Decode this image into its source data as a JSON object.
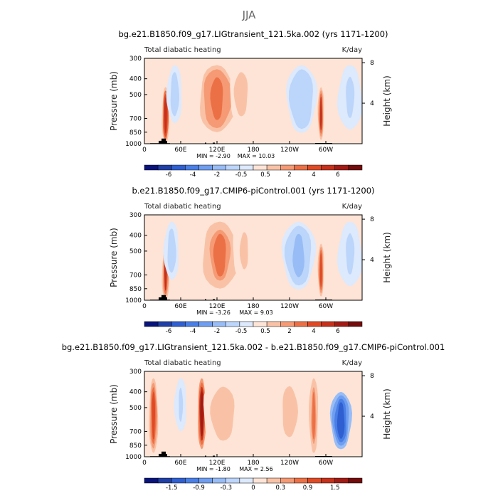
{
  "figure_title": "JJA",
  "chart_data": [
    {
      "type": "heatmap",
      "title": "bg.e21.B1850.f09_g17.LIGtransient_121.5ka.002 (yrs 1171-1200)",
      "subtitle_left": "Total diabatic heating",
      "units": "K/day",
      "ylabel_left": "Pressure (mb)",
      "ylabel_right": "Height (km)",
      "x_ticks": [
        "0",
        "60E",
        "120E",
        "180",
        "120W",
        "60W"
      ],
      "y_ticks_left": [
        "300",
        "400",
        "500",
        "700",
        "850",
        "1000"
      ],
      "y_ticks_right": [
        "8",
        "4"
      ],
      "xlim": [
        0,
        360
      ],
      "ylim": [
        1000,
        300
      ],
      "min_label": "MIN = -2.90",
      "max_label": "MAX = 10.03",
      "colorbar_labels": [
        "-6",
        "-4",
        "-2",
        "-0.5",
        "0.5",
        "2",
        "4",
        "6"
      ],
      "colorbar_colors": [
        "#08147a",
        "#1f3fa6",
        "#2f5fd0",
        "#4a7fe6",
        "#6f9ef0",
        "#97bcf6",
        "#bcd5fa",
        "#dde9fc",
        "#fde4d6",
        "#f9c2a6",
        "#f59a74",
        "#ec7046",
        "#df4a25",
        "#c5311b",
        "#a11b14",
        "#730c0c"
      ],
      "features": [
        {
          "lon": 35,
          "width": 12,
          "value": 4.5,
          "top": 450,
          "bottom": 1000
        },
        {
          "lon": 120,
          "width": 60,
          "value": 3.0,
          "top": 330,
          "bottom": 850
        },
        {
          "lon": 160,
          "width": 40,
          "value": 1.2,
          "top": 330,
          "bottom": 750
        },
        {
          "lon": 260,
          "width": 50,
          "value": -1.6,
          "top": 330,
          "bottom": 860
        },
        {
          "lon": 292,
          "width": 10,
          "value": 4.0,
          "top": 450,
          "bottom": 950
        },
        {
          "lon": 50,
          "width": 25,
          "value": -1.2,
          "top": 330,
          "bottom": 750
        },
        {
          "lon": 340,
          "width": 40,
          "value": -0.9,
          "top": 330,
          "bottom": 820
        }
      ]
    },
    {
      "type": "heatmap",
      "title": "b.e21.B1850.f09_g17.CMIP6-piControl.001 (yrs 1171-1200)",
      "subtitle_left": "Total diabatic heating",
      "units": "K/day",
      "ylabel_left": "Pressure (mb)",
      "ylabel_right": "Height (km)",
      "x_ticks": [
        "0",
        "60E",
        "120E",
        "180",
        "120W",
        "60W"
      ],
      "y_ticks_left": [
        "300",
        "400",
        "500",
        "700",
        "850",
        "1000"
      ],
      "y_ticks_right": [
        "8",
        "4"
      ],
      "xlim": [
        0,
        360
      ],
      "ylim": [
        1000,
        300
      ],
      "min_label": "MIN = -3.26",
      "max_label": "MAX = 9.03",
      "colorbar_labels": [
        "-6",
        "-4",
        "-2",
        "-0.5",
        "0.5",
        "2",
        "4",
        "6"
      ],
      "colorbar_colors": [
        "#08147a",
        "#1f3fa6",
        "#2f5fd0",
        "#4a7fe6",
        "#6f9ef0",
        "#97bcf6",
        "#bcd5fa",
        "#dde9fc",
        "#fde4d6",
        "#f9c2a6",
        "#f59a74",
        "#ec7046",
        "#df4a25",
        "#c5311b",
        "#a11b14",
        "#730c0c"
      ],
      "features": [
        {
          "lon": 35,
          "width": 12,
          "value": 4.0,
          "top": 480,
          "bottom": 1000
        },
        {
          "lon": 125,
          "width": 60,
          "value": 2.4,
          "top": 330,
          "bottom": 850
        },
        {
          "lon": 165,
          "width": 40,
          "value": 1.0,
          "top": 330,
          "bottom": 750
        },
        {
          "lon": 255,
          "width": 55,
          "value": -2.0,
          "top": 330,
          "bottom": 860
        },
        {
          "lon": 292,
          "width": 10,
          "value": 3.5,
          "top": 450,
          "bottom": 950
        },
        {
          "lon": 45,
          "width": 25,
          "value": -1.4,
          "top": 330,
          "bottom": 750
        },
        {
          "lon": 340,
          "width": 40,
          "value": -1.0,
          "top": 330,
          "bottom": 820
        }
      ]
    },
    {
      "type": "heatmap",
      "title": "bg.e21.B1850.f09_g17.LIGtransient_121.5ka.002 - b.e21.B1850.f09_g17.CMIP6-piControl.001",
      "subtitle_left": "Total diabatic heating",
      "units": "K/day",
      "ylabel_left": "Pressure (mb)",
      "ylabel_right": "Height (km)",
      "x_ticks": [
        "0",
        "60E",
        "120E",
        "180",
        "120W",
        "60W"
      ],
      "y_ticks_left": [
        "300",
        "400",
        "500",
        "700",
        "850",
        "1000"
      ],
      "y_ticks_right": [
        "8",
        "4"
      ],
      "xlim": [
        0,
        360
      ],
      "ylim": [
        1000,
        300
      ],
      "min_label": "MIN = -1.80",
      "max_label": "MAX = 2.56",
      "colorbar_labels": [
        "-1.5",
        "-0.9",
        "-0.3",
        "0",
        "0.3",
        "0.9",
        "1.5"
      ],
      "colorbar_colors": [
        "#08147a",
        "#1f3fa6",
        "#2f5fd0",
        "#4a7fe6",
        "#6f9ef0",
        "#97bcf6",
        "#bcd5fa",
        "#dde9fc",
        "#fde4d6",
        "#f9c2a6",
        "#f59a74",
        "#ec7046",
        "#df4a25",
        "#c5311b",
        "#a11b14",
        "#730c0c"
      ],
      "features": [
        {
          "lon": 15,
          "width": 15,
          "value": 0.9,
          "top": 330,
          "bottom": 950
        },
        {
          "lon": 95,
          "width": 14,
          "value": 1.3,
          "top": 330,
          "bottom": 900
        },
        {
          "lon": 130,
          "width": 70,
          "value": 0.35,
          "top": 330,
          "bottom": 900
        },
        {
          "lon": 325,
          "width": 35,
          "value": -1.2,
          "top": 400,
          "bottom": 900
        },
        {
          "lon": 280,
          "width": 15,
          "value": 0.6,
          "top": 330,
          "bottom": 950
        },
        {
          "lon": 60,
          "width": 20,
          "value": -0.25,
          "top": 330,
          "bottom": 700
        },
        {
          "lon": 240,
          "width": 45,
          "value": 0.3,
          "top": 330,
          "bottom": 850
        }
      ]
    }
  ]
}
